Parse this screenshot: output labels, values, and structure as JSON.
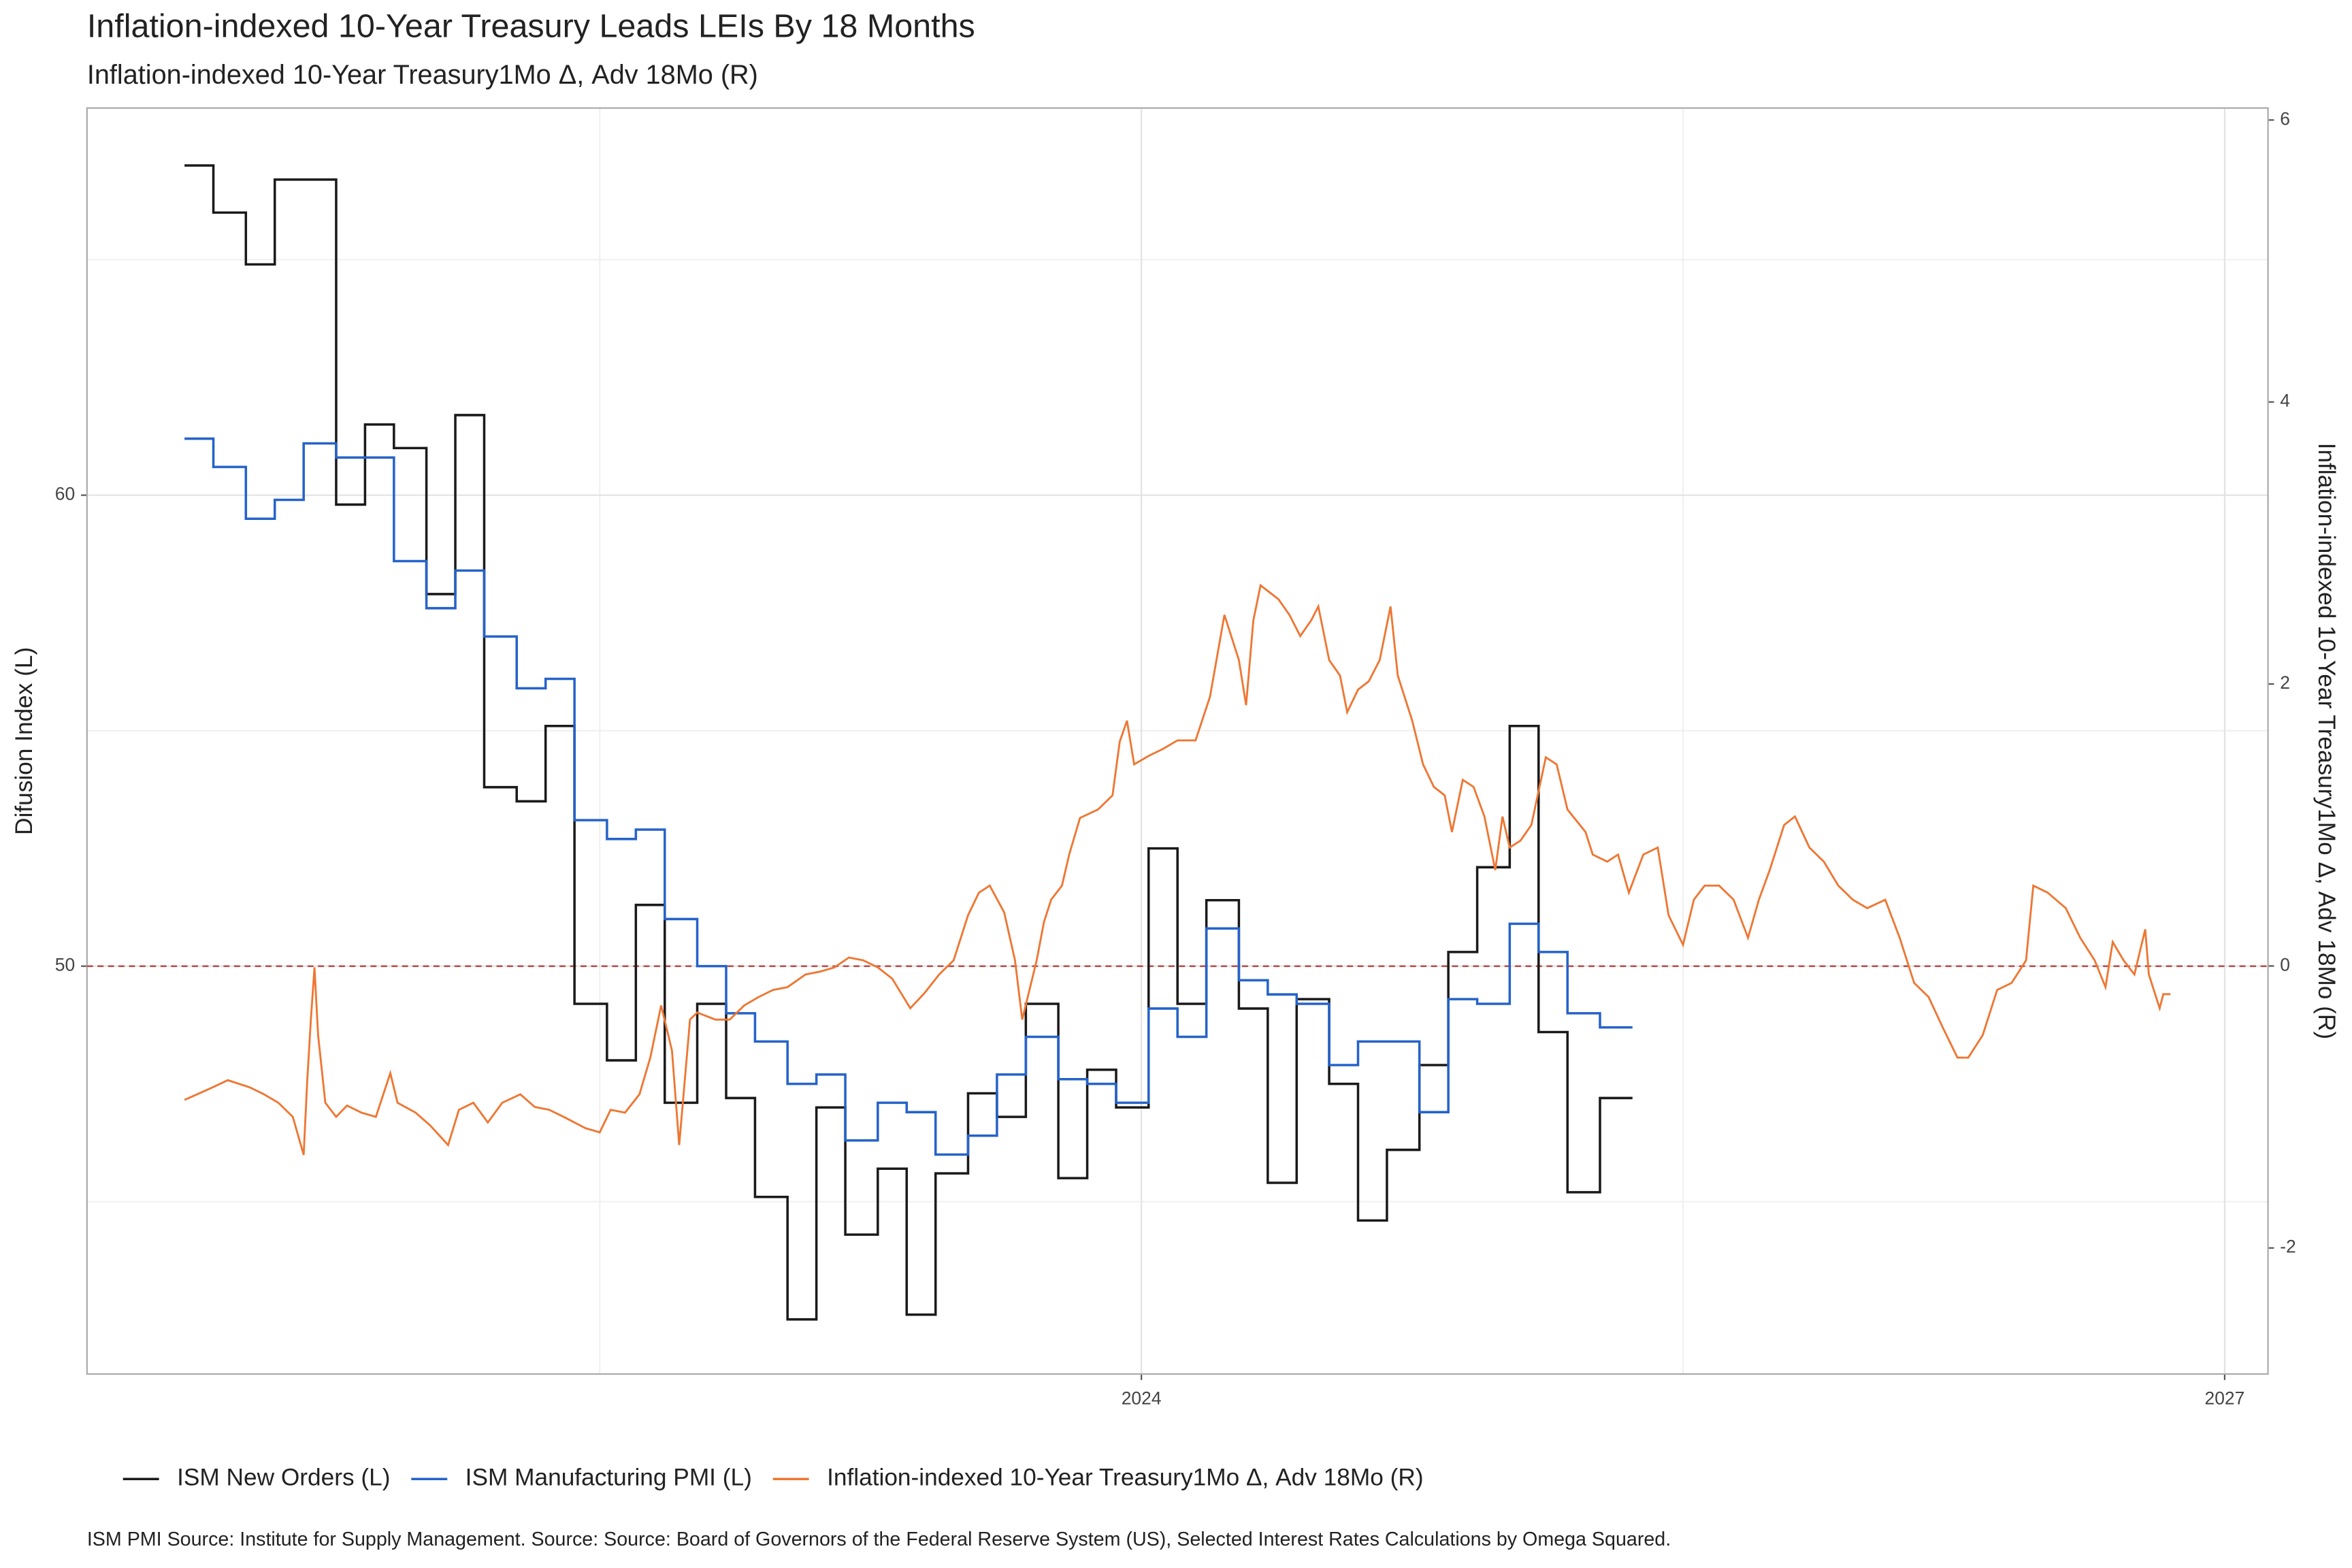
{
  "chart_data": {
    "type": "line",
    "title": "Inflation-indexed 10-Year Treasury  Leads LEIs By  18  Months",
    "subtitle": "Inflation-indexed 10-Year Treasury1Mo Δ, Adv 18Mo (R)",
    "y_label": "Difusion Index (L)",
    "y2_label": "Inflation-indexed 10-Year Treasury1Mo Δ, Adv 18Mo (R)",
    "caption": "ISM PMI Source: Institute for Supply Management. Source: Source: Board of Governors of the Federal Reserve System (US), Selected Interest Rates Calculations by Omega Squared.",
    "xlim": [
      2021.08,
      2027.12
    ],
    "xticks": [
      2024,
      2027
    ],
    "x_minor_grid": [
      2022.5,
      2025.5
    ],
    "ylim": [
      41.34,
      68.22
    ],
    "yticks": [
      50,
      60
    ],
    "y_minor_grid": [
      45,
      55,
      65
    ],
    "y2lim": [
      -2.894,
      6.085
    ],
    "y2ticks": [
      -2,
      0,
      2,
      4,
      6
    ],
    "grid": true,
    "legend": "bottom",
    "hline": {
      "value": 50,
      "color": "#c0504d"
    },
    "series": [
      {
        "name": "ISM New Orders (L)",
        "color": "#1a1a1a",
        "step": true,
        "axis": "y",
        "x": [
          2021.35,
          2021.43,
          2021.52,
          2021.6,
          2021.68,
          2021.77,
          2021.85,
          2021.93,
          2022.02,
          2022.1,
          2022.18,
          2022.27,
          2022.35,
          2022.43,
          2022.52,
          2022.6,
          2022.68,
          2022.77,
          2022.85,
          2022.93,
          2023.02,
          2023.1,
          2023.18,
          2023.27,
          2023.35,
          2023.43,
          2023.52,
          2023.6,
          2023.68,
          2023.77,
          2023.85,
          2023.93,
          2024.02,
          2024.1,
          2024.18,
          2024.27,
          2024.35,
          2024.43,
          2024.52,
          2024.6,
          2024.68,
          2024.77,
          2024.85,
          2024.93,
          2025.02,
          2025.1,
          2025.18,
          2025.27
        ],
        "values": [
          67.0,
          66.0,
          64.9,
          66.7,
          66.7,
          59.8,
          61.5,
          61.0,
          57.9,
          61.7,
          53.8,
          53.5,
          55.1,
          49.2,
          48.0,
          51.3,
          47.1,
          49.2,
          47.2,
          45.1,
          42.5,
          47.0,
          44.3,
          45.7,
          42.6,
          45.6,
          47.3,
          46.8,
          49.2,
          45.5,
          47.8,
          47.0,
          52.5,
          49.2,
          51.4,
          49.1,
          45.4,
          49.3,
          47.5,
          44.6,
          46.1,
          47.9,
          50.3,
          52.1,
          55.1,
          48.6,
          45.2,
          47.2
        ]
      },
      {
        "name": "ISM Manufacturing PMI (L)",
        "color": "#2563c9",
        "step": true,
        "axis": "y",
        "x": [
          2021.35,
          2021.43,
          2021.52,
          2021.6,
          2021.68,
          2021.77,
          2021.85,
          2021.93,
          2022.02,
          2022.1,
          2022.18,
          2022.27,
          2022.35,
          2022.43,
          2022.52,
          2022.6,
          2022.68,
          2022.77,
          2022.85,
          2022.93,
          2023.02,
          2023.1,
          2023.18,
          2023.27,
          2023.35,
          2023.43,
          2023.52,
          2023.6,
          2023.68,
          2023.77,
          2023.85,
          2023.93,
          2024.02,
          2024.1,
          2024.18,
          2024.27,
          2024.35,
          2024.43,
          2024.52,
          2024.6,
          2024.68,
          2024.77,
          2024.85,
          2024.93,
          2025.02,
          2025.1,
          2025.18,
          2025.27
        ],
        "values": [
          61.2,
          60.6,
          59.5,
          59.9,
          61.1,
          60.8,
          60.8,
          58.6,
          57.6,
          58.4,
          57.0,
          55.9,
          56.1,
          53.1,
          52.7,
          52.9,
          51.0,
          50.0,
          49.0,
          48.4,
          47.5,
          47.7,
          46.3,
          47.1,
          46.9,
          46.0,
          46.4,
          47.7,
          48.5,
          47.6,
          47.5,
          47.1,
          49.1,
          48.5,
          50.8,
          49.7,
          49.4,
          49.2,
          47.9,
          48.4,
          48.4,
          46.9,
          49.3,
          49.2,
          50.9,
          50.3,
          49.0,
          48.7
        ]
      },
      {
        "name": "Inflation-indexed 10-Year Treasury1Mo Δ, Adv 18Mo (R)",
        "color": "#ee7733",
        "step": false,
        "axis": "y2",
        "x": [
          2021.35,
          2021.42,
          2021.47,
          2021.53,
          2021.57,
          2021.61,
          2021.65,
          2021.68,
          2021.69,
          2021.7,
          2021.71,
          2021.72,
          2021.74,
          2021.77,
          2021.8,
          2021.84,
          2021.88,
          2021.92,
          2021.94,
          2021.99,
          2022.03,
          2022.08,
          2022.11,
          2022.15,
          2022.19,
          2022.23,
          2022.28,
          2022.32,
          2022.36,
          2022.4,
          2022.46,
          2022.5,
          2022.53,
          2022.57,
          2022.61,
          2022.64,
          2022.67,
          2022.7,
          2022.72,
          2022.75,
          2022.77,
          2022.82,
          2022.86,
          2022.9,
          2022.94,
          2022.98,
          2023.02,
          2023.07,
          2023.11,
          2023.15,
          2023.19,
          2023.23,
          2023.27,
          2023.31,
          2023.36,
          2023.4,
          2023.44,
          2023.48,
          2023.52,
          2023.55,
          2023.58,
          2023.62,
          2023.65,
          2023.67,
          2023.69,
          2023.71,
          2023.73,
          2023.75,
          2023.78,
          2023.8,
          2023.83,
          2023.88,
          2023.92,
          2023.94,
          2023.96,
          2023.98,
          2024.02,
          2024.06,
          2024.1,
          2024.15,
          2024.19,
          2024.23,
          2024.27,
          2024.29,
          2024.31,
          2024.33,
          2024.35,
          2024.38,
          2024.41,
          2024.44,
          2024.47,
          2024.49,
          2024.52,
          2024.55,
          2024.57,
          2024.6,
          2024.63,
          2024.66,
          2024.69,
          2024.71,
          2024.75,
          2024.78,
          2024.81,
          2024.84,
          2024.86,
          2024.89,
          2024.92,
          2024.95,
          2024.98,
          2025.0,
          2025.02,
          2025.05,
          2025.08,
          2025.12,
          2025.15,
          2025.18,
          2025.23,
          2025.25,
          2025.29,
          2025.32,
          2025.35,
          2025.39,
          2025.43,
          2025.46,
          2025.5,
          2025.53,
          2025.56,
          2025.6,
          2025.64,
          2025.68,
          2025.71,
          2025.74,
          2025.78,
          2025.81,
          2025.85,
          2025.89,
          2025.93,
          2025.97,
          2026.01,
          2026.06,
          2026.1,
          2026.14,
          2026.18,
          2026.22,
          2026.26,
          2026.29,
          2026.33,
          2026.37,
          2026.41,
          2026.45,
          2026.47,
          2026.51,
          2026.56,
          2026.6,
          2026.64,
          2026.67,
          2026.69,
          2026.72,
          2026.75,
          2026.78,
          2026.79,
          2026.82,
          2026.83,
          2026.85
        ],
        "values": [
          -0.95,
          -0.87,
          -0.81,
          -0.86,
          -0.91,
          -0.97,
          -1.07,
          -1.34,
          -0.81,
          -0.38,
          -0.01,
          -0.49,
          -0.97,
          -1.07,
          -0.99,
          -1.04,
          -1.07,
          -0.76,
          -0.97,
          -1.04,
          -1.13,
          -1.27,
          -1.02,
          -0.97,
          -1.11,
          -0.97,
          -0.91,
          -1.0,
          -1.02,
          -1.07,
          -1.15,
          -1.18,
          -1.02,
          -1.04,
          -0.91,
          -0.65,
          -0.28,
          -0.6,
          -1.27,
          -0.38,
          -0.33,
          -0.38,
          -0.38,
          -0.28,
          -0.22,
          -0.17,
          -0.15,
          -0.06,
          -0.04,
          -0.01,
          0.06,
          0.04,
          -0.01,
          -0.09,
          -0.3,
          -0.19,
          -0.06,
          0.04,
          0.36,
          0.52,
          0.57,
          0.38,
          0.04,
          -0.38,
          -0.17,
          0.04,
          0.31,
          0.47,
          0.57,
          0.79,
          1.05,
          1.11,
          1.21,
          1.59,
          1.74,
          1.43,
          1.49,
          1.54,
          1.6,
          1.6,
          1.91,
          2.49,
          2.17,
          1.85,
          2.45,
          2.7,
          2.66,
          2.6,
          2.49,
          2.34,
          2.45,
          2.55,
          2.17,
          2.06,
          1.8,
          1.96,
          2.02,
          2.17,
          2.55,
          2.06,
          1.74,
          1.43,
          1.27,
          1.21,
          0.95,
          1.32,
          1.27,
          1.06,
          0.68,
          1.06,
          0.84,
          0.89,
          1.0,
          1.48,
          1.43,
          1.11,
          0.95,
          0.79,
          0.74,
          0.79,
          0.52,
          0.79,
          0.84,
          0.36,
          0.15,
          0.47,
          0.57,
          0.57,
          0.47,
          0.2,
          0.47,
          0.68,
          1.0,
          1.06,
          0.84,
          0.74,
          0.57,
          0.47,
          0.41,
          0.47,
          0.2,
          -0.12,
          -0.22,
          -0.44,
          -0.65,
          -0.65,
          -0.49,
          -0.17,
          -0.12,
          0.04,
          0.57,
          0.52,
          0.41,
          0.2,
          0.04,
          -0.15,
          0.17,
          0.04,
          -0.06,
          0.26,
          -0.06,
          -0.3,
          -0.2,
          -0.2
        ]
      }
    ]
  }
}
